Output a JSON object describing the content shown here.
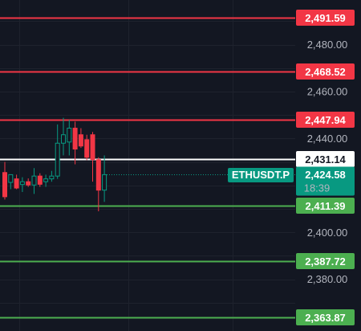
{
  "chart_data": {
    "type": "candlestick",
    "symbol": "ETHUSDT.P",
    "current_price": "2,424.58",
    "countdown": "18:39",
    "ylim": [
      2358.0,
      2499.0
    ],
    "y_ticks": [
      {
        "value": 2480,
        "label": "2,480.00"
      },
      {
        "value": 2460,
        "label": "2,460.00"
      },
      {
        "value": 2440,
        "label": "2,440.00"
      },
      {
        "value": 2400,
        "label": "2,400.00"
      },
      {
        "value": 2380,
        "label": "2,380.00"
      }
    ],
    "horizontal_lines": [
      {
        "value": 2491.59,
        "label": "2,491.59",
        "kind": "resistance"
      },
      {
        "value": 2468.52,
        "label": "2,468.52",
        "kind": "resistance"
      },
      {
        "value": 2447.94,
        "label": "2,447.94",
        "kind": "resistance"
      },
      {
        "value": 2431.14,
        "label": "2,431.14",
        "kind": "pivot"
      },
      {
        "value": 2411.39,
        "label": "2,411.39",
        "kind": "support"
      },
      {
        "value": 2387.72,
        "label": "2,387.72",
        "kind": "support"
      },
      {
        "value": 2363.87,
        "label": "2,363.87",
        "kind": "support"
      }
    ],
    "candles": [
      {
        "o": 2425.5,
        "h": 2430.0,
        "l": 2414.0,
        "c": 2415.2
      },
      {
        "o": 2421.3,
        "h": 2424.6,
        "l": 2418.4,
        "c": 2424.6
      },
      {
        "o": 2422.8,
        "h": 2424.6,
        "l": 2418.4,
        "c": 2418.9
      },
      {
        "o": 2420.4,
        "h": 2423.5,
        "l": 2417.2,
        "c": 2421.6
      },
      {
        "o": 2421.6,
        "h": 2423.0,
        "l": 2419.4,
        "c": 2420.2
      },
      {
        "o": 2420.2,
        "h": 2427.4,
        "l": 2416.4,
        "c": 2424.0
      },
      {
        "o": 2424.0,
        "h": 2425.2,
        "l": 2419.4,
        "c": 2420.5
      },
      {
        "o": 2421.6,
        "h": 2424.6,
        "l": 2419.4,
        "c": 2422.8
      },
      {
        "o": 2422.8,
        "h": 2426.2,
        "l": 2421.6,
        "c": 2424.0
      },
      {
        "o": 2424.0,
        "h": 2446.0,
        "l": 2422.8,
        "c": 2438.0
      },
      {
        "o": 2438.0,
        "h": 2448.8,
        "l": 2432.8,
        "c": 2441.6
      },
      {
        "o": 2438.5,
        "h": 2448.0,
        "l": 2432.8,
        "c": 2444.4
      },
      {
        "o": 2444.4,
        "h": 2447.2,
        "l": 2429.0,
        "c": 2435.5
      },
      {
        "o": 2441.6,
        "h": 2444.4,
        "l": 2436.0,
        "c": 2436.8
      },
      {
        "o": 2439.5,
        "h": 2441.6,
        "l": 2430.8,
        "c": 2432.0
      },
      {
        "o": 2441.6,
        "h": 2442.8,
        "l": 2421.6,
        "c": 2431.0
      },
      {
        "o": 2431.0,
        "h": 2432.0,
        "l": 2409.0,
        "c": 2418.0
      },
      {
        "o": 2418.0,
        "h": 2432.8,
        "l": 2413.0,
        "c": 2424.6
      }
    ],
    "colors": {
      "background": "#131722",
      "grid": "#1e222d",
      "axis_text": "#b2b5be",
      "up": "#089981",
      "down": "#f23645",
      "resistance_line": "#f23645",
      "support_line": "#4caf50",
      "pivot_line": "#ffffff",
      "label_text_light": "#ffffff",
      "label_text_dark": "#131722",
      "price_badge": "#089981"
    }
  }
}
